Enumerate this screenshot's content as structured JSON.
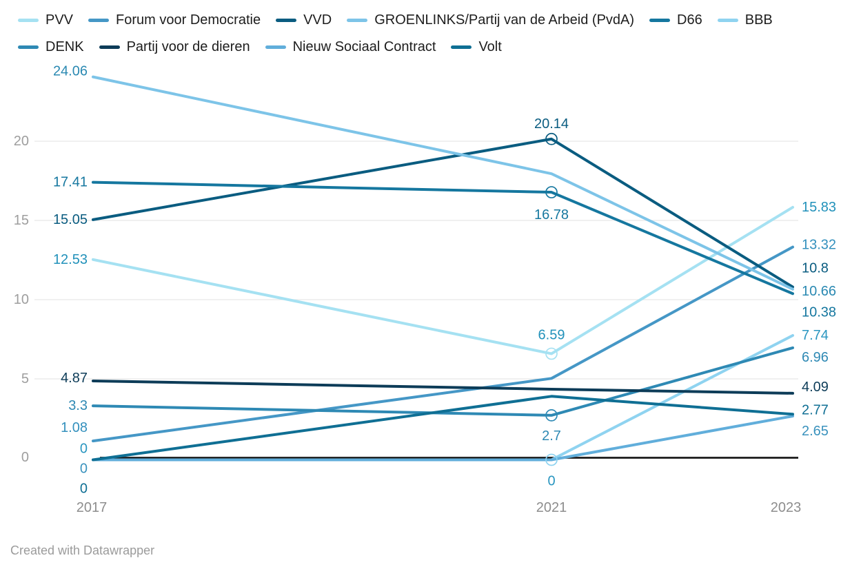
{
  "footer": "Created with Datawrapper",
  "axis": {
    "yticks_labels": [
      "0",
      "5",
      "10",
      "15",
      "20"
    ],
    "xticks_labels": [
      "2017",
      "2021",
      "2023"
    ]
  },
  "colors": {
    "grid": "#e7e7e7",
    "zero_line": "#1a1a1a",
    "axis_text": "#9e9e9e",
    "year_text": "#8d8d8d",
    "legend_text": "#1d1d1d"
  },
  "chart_data": {
    "type": "line",
    "x": [
      "2017",
      "2021",
      "2023"
    ],
    "ylim": [
      0,
      25.5
    ],
    "yticks": [
      0,
      5,
      10,
      15,
      20
    ],
    "grid": true,
    "legend_position": "top",
    "series": [
      {
        "name": "PVV",
        "color": "#a5e1f2",
        "label_color": "#2191ba",
        "values": [
          12.53,
          6.59,
          15.83
        ],
        "marker_2021": true,
        "labels": [
          {
            "i": 0,
            "text": "12.53",
            "dy": 0
          },
          {
            "i": 1,
            "text": "6.59",
            "dy": -27
          },
          {
            "i": 2,
            "text": "15.83",
            "dy": 0
          }
        ]
      },
      {
        "name": "Forum voor Democratie",
        "color": "#4597c6",
        "label_color": "#3390bd",
        "values": [
          1.08,
          5.03,
          13.32
        ],
        "marker_2021": false,
        "labels": [
          {
            "i": 0,
            "text": "1.08",
            "dy": -19
          },
          {
            "i": 2,
            "text": "13.32",
            "dy": -3
          }
        ]
      },
      {
        "name": "VVD",
        "color": "#0a5c80",
        "label_color": "#0a5c80",
        "values": [
          15.05,
          20.14,
          10.8
        ],
        "marker_2021": true,
        "labels": [
          {
            "i": 0,
            "text": "15.05",
            "dy": 0
          },
          {
            "i": 1,
            "text": "20.14",
            "dy": -22
          },
          {
            "i": 2,
            "text": "10.8",
            "dy": -27
          }
        ]
      },
      {
        "name": "GROENLINKS/Partij van de Arbeid (PvdA)",
        "color": "#7dc4e8",
        "label_color": "#2a89b2",
        "values": [
          24.06,
          17.95,
          10.66
        ],
        "marker_2021": false,
        "labels": [
          {
            "i": 0,
            "text": "24.06",
            "dy": -8
          },
          {
            "i": 2,
            "text": "10.66",
            "dy": 3
          }
        ]
      },
      {
        "name": "D66",
        "color": "#15779f",
        "label_color": "#15779f",
        "values": [
          17.41,
          16.78,
          10.38
        ],
        "marker_2021": true,
        "labels": [
          {
            "i": 0,
            "text": "17.41",
            "dy": 0
          },
          {
            "i": 1,
            "text": "16.78",
            "dy": 33
          },
          {
            "i": 2,
            "text": "10.38",
            "dy": 27
          }
        ]
      },
      {
        "name": "BBB",
        "color": "#8fd3f0",
        "label_color": "#2a96c0",
        "values": [
          0,
          0,
          7.74
        ],
        "marker_2021": true,
        "labels": [
          {
            "i": 0,
            "text": "0",
            "dy": -16
          },
          {
            "i": 1,
            "text": "0",
            "dy": 31
          },
          {
            "i": 2,
            "text": "7.74",
            "dy": 0
          }
        ]
      },
      {
        "name": "DENK",
        "color": "#2e89b4",
        "label_color": "#2e89b4",
        "values": [
          3.3,
          2.7,
          6.96
        ],
        "marker_2021": true,
        "labels": [
          {
            "i": 0,
            "text": "3.3",
            "dy": 0
          },
          {
            "i": 1,
            "text": "2.7",
            "dy": 30
          },
          {
            "i": 2,
            "text": "6.96",
            "dy": 14
          }
        ]
      },
      {
        "name": "Partij voor de dieren",
        "color": "#0d3c58",
        "label_color": "#0d3c58",
        "values": [
          4.87,
          4.35,
          4.09
        ],
        "marker_2021": false,
        "labels": [
          {
            "i": 0,
            "text": "4.87",
            "dy": -4
          },
          {
            "i": 2,
            "text": "4.09",
            "dy": -9
          }
        ]
      },
      {
        "name": "Nieuw Sociaal Contract",
        "color": "#61aedb",
        "label_color": "#3a92bd",
        "values": [
          0,
          0,
          2.65
        ],
        "marker_2021": false,
        "labels": [
          {
            "i": 0,
            "text": "0",
            "dy": 13
          },
          {
            "i": 2,
            "text": "2.65",
            "dy": 22
          }
        ]
      },
      {
        "name": "Volt",
        "color": "#0f6f94",
        "label_color": "#0f6f94",
        "values": [
          0,
          3.9,
          2.77
        ],
        "marker_2021": false,
        "labels": [
          {
            "i": 0,
            "text": "0",
            "dy": 42
          },
          {
            "i": 2,
            "text": "2.77",
            "dy": -6
          }
        ]
      }
    ],
    "legend_rows": [
      [
        "PVV",
        "Forum voor Democratie",
        "VVD",
        "GROENLINKS/Partij van de Arbeid (PvdA)",
        "D66",
        "BBB"
      ],
      [
        "DENK",
        "Partij voor de dieren",
        "Nieuw Sociaal Contract",
        "Volt"
      ]
    ]
  }
}
